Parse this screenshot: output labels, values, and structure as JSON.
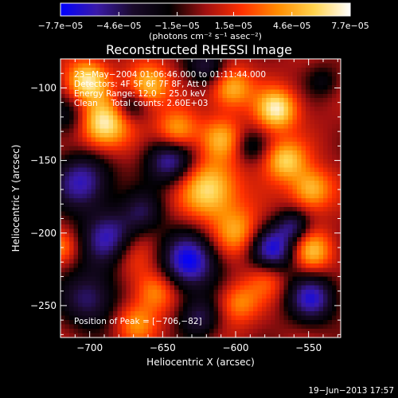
{
  "chart_data": {
    "type": "heatmap",
    "title": "Reconstructed RHESSI Image",
    "xlabel": "Heliocentric X (arcsec)",
    "ylabel": "Heliocentric Y (arcsec)",
    "xlim": [
      -720,
      -528
    ],
    "ylim": [
      -272,
      -80
    ],
    "x_ticks": [
      -700,
      -650,
      -600,
      -550
    ],
    "y_ticks": [
      -100,
      -150,
      -200,
      -250
    ],
    "x_tick_labels": [
      "−700",
      "−650",
      "−600",
      "−550"
    ],
    "y_tick_labels": [
      "−100",
      "−150",
      "−200",
      "−250"
    ],
    "colorbar": {
      "min": -7.7e-05,
      "max": 7.7e-05,
      "tick_values": [
        -7.7e-05,
        -4.6e-05,
        -1.5e-05,
        1.5e-05,
        4.6e-05,
        7.7e-05
      ],
      "tick_labels": [
        "−7.7e−05",
        "−4.6e−05",
        "−1.5e−05",
        "1.5e−05",
        "4.6e−05",
        "7.7e−05"
      ],
      "unit_label": "(photons cm⁻² s⁻¹ asec⁻²)",
      "colors": [
        "#0000ff",
        "#3a1aa8",
        "#1a0a2a",
        "#000000",
        "#a01010",
        "#ff3000",
        "#ff8c00",
        "#ffd34d",
        "#ffffff"
      ]
    },
    "info_lines": [
      "23−May−2004 01:06:46.000 to 01:11:44.000",
      "Detectors: 4F 5F 6F 7F 8F, Att 0",
      "Energy Range: 12.0 − 25.0 keV",
      "Clean     Total counts: 2.60E+03"
    ],
    "peak_label": "Position of Peak = [−706,−82]",
    "peak_position": [
      -706,
      -82
    ],
    "date_stamp": "19−Jun−2013 17:57",
    "blobs": [
      {
        "x": -690,
        "y": -125,
        "v": 0.95,
        "s": 12
      },
      {
        "x": -702,
        "y": -95,
        "v": 0.85,
        "s": 10
      },
      {
        "x": -660,
        "y": -98,
        "v": 0.75,
        "s": 10
      },
      {
        "x": -640,
        "y": -130,
        "v": 0.7,
        "s": 10
      },
      {
        "x": -618,
        "y": -170,
        "v": 0.85,
        "s": 14
      },
      {
        "x": -603,
        "y": -100,
        "v": 0.7,
        "s": 10
      },
      {
        "x": -598,
        "y": -200,
        "v": 0.6,
        "s": 12
      },
      {
        "x": -572,
        "y": -115,
        "v": 0.9,
        "s": 10
      },
      {
        "x": -566,
        "y": -150,
        "v": 0.75,
        "s": 10
      },
      {
        "x": -548,
        "y": -170,
        "v": 0.7,
        "s": 10
      },
      {
        "x": -548,
        "y": -213,
        "v": 0.7,
        "s": 10
      },
      {
        "x": -578,
        "y": -230,
        "v": 0.45,
        "s": 10
      },
      {
        "x": -672,
        "y": -215,
        "v": 0.45,
        "s": 12
      },
      {
        "x": -655,
        "y": -240,
        "v": 0.55,
        "s": 10
      },
      {
        "x": -720,
        "y": -210,
        "v": 0.4,
        "s": 8
      },
      {
        "x": -598,
        "y": -248,
        "v": 0.5,
        "s": 10
      },
      {
        "x": -668,
        "y": -262,
        "v": 0.5,
        "s": 10
      },
      {
        "x": -610,
        "y": -135,
        "v": 0.55,
        "s": 10
      },
      {
        "x": -705,
        "y": -165,
        "v": -0.8,
        "s": 14
      },
      {
        "x": -685,
        "y": -205,
        "v": -0.85,
        "s": 14
      },
      {
        "x": -700,
        "y": -245,
        "v": -0.65,
        "s": 14
      },
      {
        "x": -645,
        "y": -150,
        "v": -0.8,
        "s": 12
      },
      {
        "x": -632,
        "y": -220,
        "v": -0.95,
        "s": 14
      },
      {
        "x": -575,
        "y": -212,
        "v": -0.95,
        "s": 12
      },
      {
        "x": -548,
        "y": -245,
        "v": -0.8,
        "s": 12
      },
      {
        "x": -560,
        "y": -195,
        "v": -0.55,
        "s": 8
      },
      {
        "x": -663,
        "y": -185,
        "v": -0.45,
        "s": 10
      },
      {
        "x": -625,
        "y": -258,
        "v": -0.55,
        "s": 10
      },
      {
        "x": -620,
        "y": -85,
        "v": -0.55,
        "s": 10
      },
      {
        "x": -672,
        "y": -112,
        "v": -0.45,
        "s": 8
      },
      {
        "x": -590,
        "y": -140,
        "v": -0.35,
        "s": 8
      },
      {
        "x": -540,
        "y": -95,
        "v": -0.3,
        "s": 8
      },
      {
        "x": -715,
        "y": -120,
        "v": -0.4,
        "s": 10
      }
    ]
  }
}
